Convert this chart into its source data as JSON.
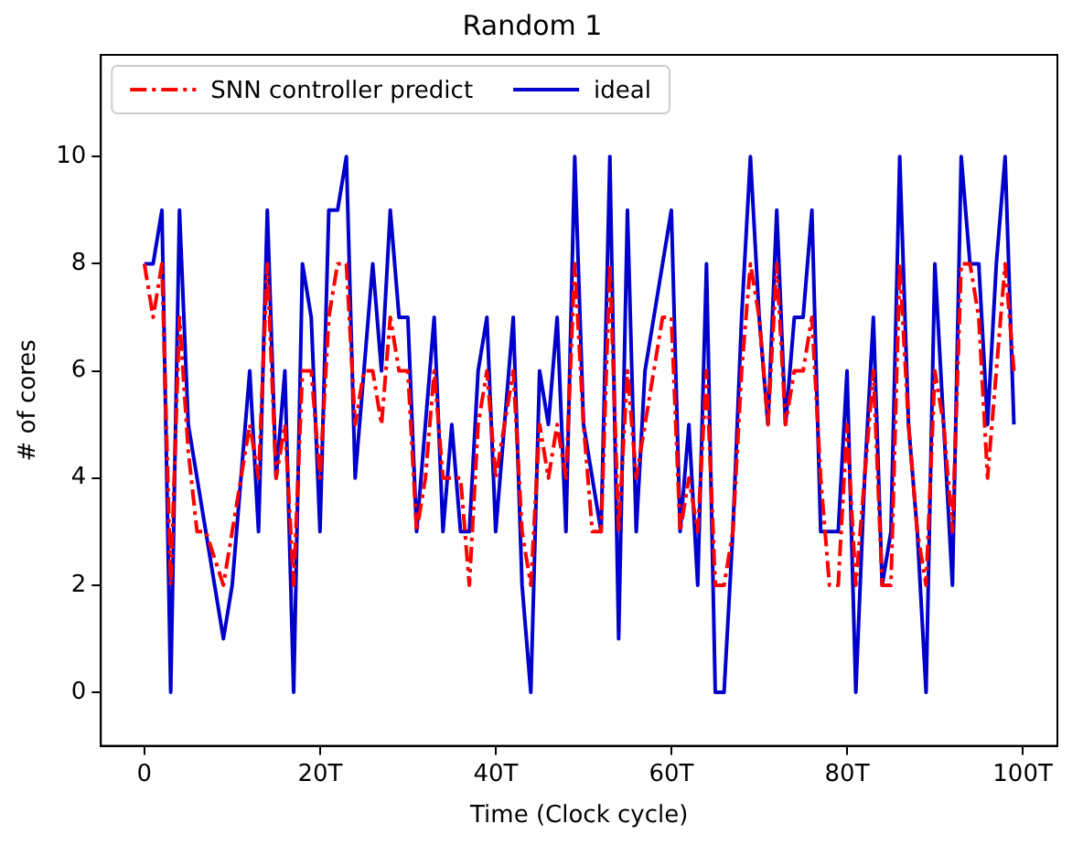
{
  "chart_data": {
    "type": "line",
    "title": "Random 1",
    "xlabel": "Time (Clock cycle)",
    "ylabel": "# of cores",
    "x": [
      0,
      1,
      2,
      3,
      4,
      5,
      6,
      7,
      8,
      9,
      10,
      11,
      12,
      13,
      14,
      15,
      16,
      17,
      18,
      19,
      20,
      21,
      22,
      23,
      24,
      25,
      26,
      27,
      28,
      29,
      30,
      31,
      32,
      33,
      34,
      35,
      36,
      37,
      38,
      39,
      40,
      41,
      42,
      43,
      44,
      45,
      46,
      47,
      48,
      49,
      50,
      51,
      52,
      53,
      54,
      55,
      56,
      57,
      58,
      59,
      60,
      61,
      62,
      63,
      64,
      65,
      66,
      67,
      68,
      69,
      70,
      71,
      72,
      73,
      74,
      75,
      76,
      77,
      78,
      79,
      80,
      81,
      82,
      83,
      84,
      85,
      86,
      87,
      88,
      89,
      90,
      91,
      92,
      93,
      94,
      95,
      96,
      97,
      98,
      99
    ],
    "series": [
      {
        "name": "SNN controller predict",
        "color": "#ff0000",
        "line_style": "dashed",
        "values": [
          8,
          7,
          8,
          2,
          7,
          4.5,
          3,
          3,
          2.5,
          2,
          3,
          4,
          5,
          4,
          8,
          4,
          5,
          2,
          6,
          6,
          4,
          7,
          8,
          8,
          5,
          6,
          6,
          5,
          7,
          6,
          6,
          3,
          4,
          6,
          4,
          4,
          4,
          2,
          5,
          6,
          4,
          5,
          6,
          3,
          2,
          5,
          4,
          5,
          4,
          8,
          5,
          3,
          3,
          8,
          3,
          6,
          4,
          5,
          6,
          7,
          7,
          3,
          4,
          3,
          6,
          2,
          2,
          3,
          6,
          8,
          7,
          5,
          8,
          5,
          6,
          6,
          7,
          4,
          2,
          2,
          5,
          2,
          4,
          6,
          2,
          2,
          8,
          5,
          3,
          2,
          6,
          5,
          3,
          8,
          8,
          7,
          4,
          6,
          8,
          6
        ]
      },
      {
        "name": "ideal",
        "color": "#0000cc",
        "line_style": "solid",
        "values": [
          8,
          8,
          9,
          0,
          9,
          5,
          4,
          3,
          2,
          1,
          2,
          4,
          6,
          3,
          9,
          4,
          6,
          0,
          8,
          7,
          3,
          9,
          9,
          10,
          4,
          6,
          8,
          6,
          9,
          7,
          7,
          3,
          5,
          7,
          3,
          5,
          3,
          3,
          6,
          7,
          3,
          5,
          7,
          2,
          0,
          6,
          5,
          7,
          3,
          10,
          5,
          4,
          3,
          10,
          1,
          9,
          3,
          6,
          7,
          8,
          9,
          3,
          5,
          2,
          8,
          0,
          0,
          3,
          7,
          10,
          7,
          5,
          9,
          5,
          7,
          7,
          9,
          3,
          3,
          3,
          6,
          0,
          4,
          7,
          2,
          3,
          10,
          5,
          3,
          0,
          8,
          5,
          2,
          10,
          8,
          8,
          5,
          8,
          10,
          5
        ]
      }
    ],
    "xlim": [
      -4.95,
      103.95
    ],
    "ylim": [
      -1,
      11.9
    ],
    "xticks": [
      0,
      {
        "value": 20,
        "label": "20T"
      },
      {
        "value": 40,
        "label": "40T"
      },
      {
        "value": 60,
        "label": "60T"
      },
      {
        "value": 80,
        "label": "80T"
      },
      {
        "value": 100,
        "label": "100T"
      }
    ],
    "yticks": [
      0,
      2,
      4,
      6,
      8,
      10
    ],
    "legend": "top left",
    "grid": false,
    "marker": "none"
  }
}
